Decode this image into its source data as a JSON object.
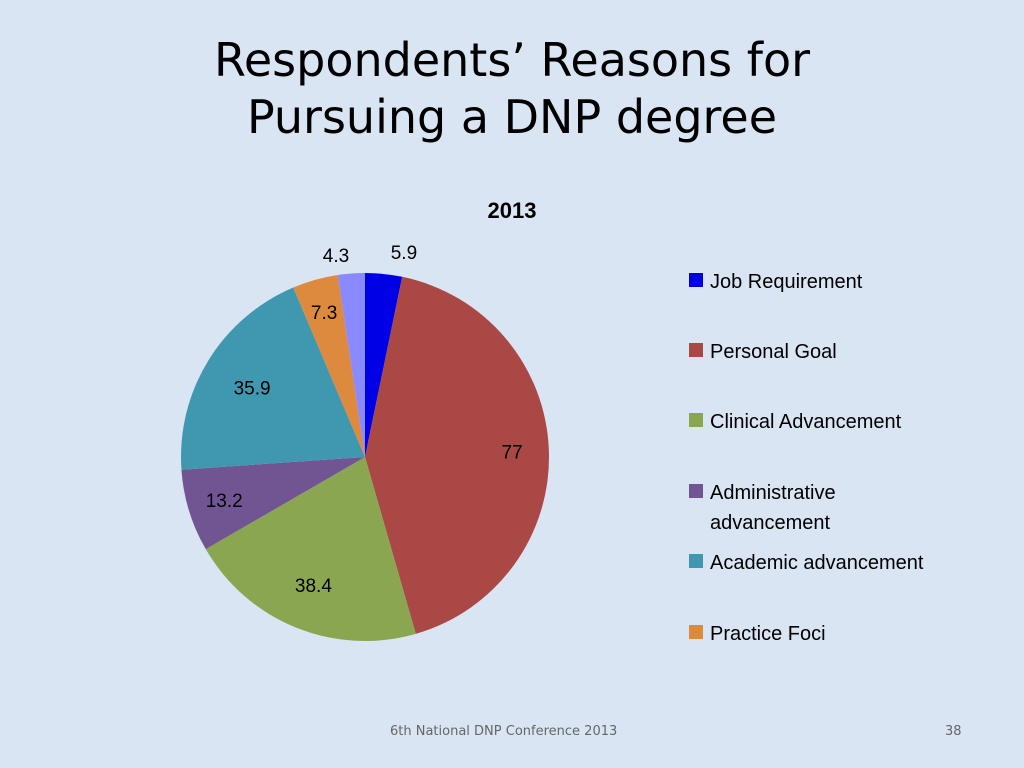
{
  "slide": {
    "title_line1": "Respondents’ Reasons for",
    "title_line2": "Pursuing a DNP degree",
    "footer": "6th National DNP Conference  2013",
    "page_number": "38"
  },
  "chart_data": {
    "type": "pie",
    "title": "2013",
    "categories": [
      "Job Requirement",
      "Personal Goal",
      "Clinical Advancement",
      "Administrative advancement",
      "Academic advancement",
      "Practice Foci",
      ""
    ],
    "legend_display": [
      "Job Requirement",
      "Personal Goal",
      "Clinical Advancement",
      "Administrative|advancement",
      "Academic advancement",
      "Practice Foci"
    ],
    "values": [
      5.9,
      77,
      38.4,
      13.2,
      35.9,
      7.3,
      4.3
    ],
    "value_labels": [
      "5.9",
      "77",
      "38.4",
      "13.2",
      "35.9",
      "7.3",
      "4.3"
    ],
    "colors": [
      "#0000e6",
      "#a94845",
      "#8aa650",
      "#715592",
      "#4098b0",
      "#de8a3e",
      "#8a8aff"
    ],
    "legend_placement": "right",
    "start_angle_deg": 0,
    "direction": "clockwise"
  }
}
